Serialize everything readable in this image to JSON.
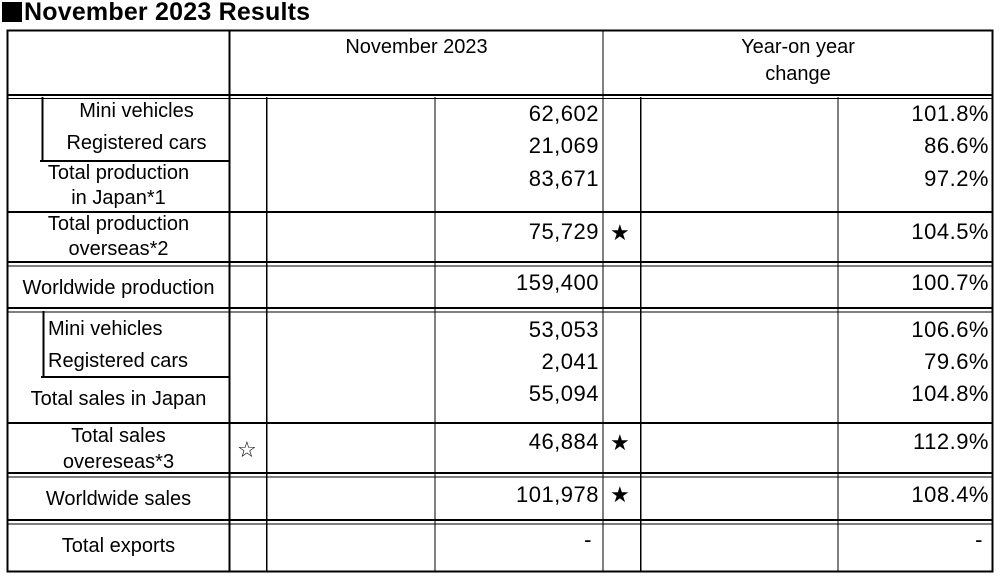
{
  "title": "November 2023 Results",
  "header": {
    "col_month": "November 2023",
    "col_yoy_line1": "Year-on year",
    "col_yoy_line2": "change"
  },
  "rows": {
    "prod_mini": {
      "label": "Mini vehicles",
      "value": "62,602",
      "yoy": "101.8%"
    },
    "prod_registered": {
      "label": "Registered cars",
      "value": "21,069",
      "yoy": "86.6%"
    },
    "prod_japan": {
      "label_line1": "Total production",
      "label_line2": "in Japan*1",
      "value": "83,671",
      "yoy": "97.2%"
    },
    "prod_overseas": {
      "label_line1": "Total production",
      "label_line2": "overseas*2",
      "value": "75,729",
      "mark": "★",
      "yoy": "104.5%"
    },
    "prod_world": {
      "label": "Worldwide production",
      "value": "159,400",
      "yoy": "100.7%"
    },
    "sales_mini": {
      "label": "Mini vehicles",
      "value": "53,053",
      "yoy": "106.6%"
    },
    "sales_registered": {
      "label": "Registered cars",
      "value": "2,041",
      "yoy": "79.6%"
    },
    "sales_japan": {
      "label": "Total sales in Japan",
      "value": "55,094",
      "yoy": "104.8%"
    },
    "sales_overseas": {
      "label_line1": "Total sales",
      "label_line2": "overeseas*3",
      "pre_mark": "☆",
      "value": "46,884",
      "mark": "★",
      "yoy": "112.9%"
    },
    "sales_world": {
      "label": "Worldwide sales",
      "value": "101,978",
      "mark": "★",
      "yoy": "108.4%"
    },
    "exports": {
      "label": "Total exports",
      "value": "-",
      "yoy": "-"
    }
  }
}
